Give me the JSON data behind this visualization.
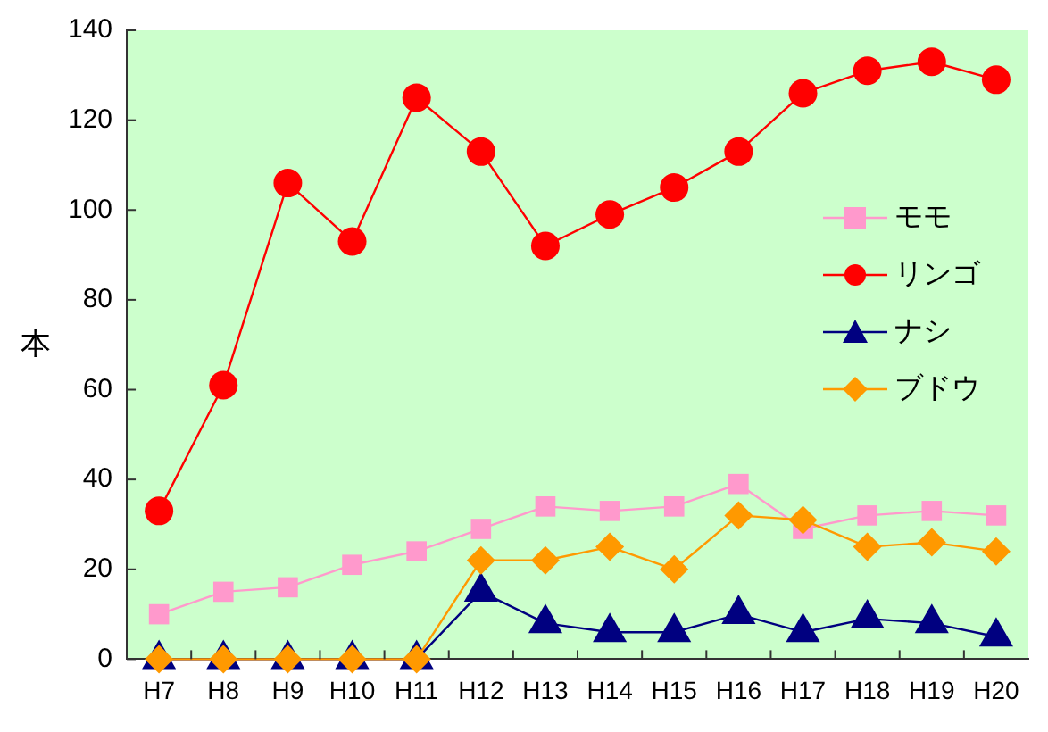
{
  "chart_data": {
    "type": "line",
    "ylabel": "本",
    "categories": [
      "H7",
      "H8",
      "H9",
      "H10",
      "H11",
      "H12",
      "H13",
      "H14",
      "H15",
      "H16",
      "H17",
      "H18",
      "H19",
      "H20"
    ],
    "series": [
      {
        "name": "モモ",
        "color": "#ff99cc",
        "marker": "square",
        "values": [
          10,
          15,
          16,
          21,
          24,
          29,
          34,
          33,
          34,
          39,
          29,
          32,
          33,
          32
        ]
      },
      {
        "name": "リンゴ",
        "color": "#ff0000",
        "marker": "circle",
        "values": [
          33,
          61,
          106,
          93,
          125,
          113,
          92,
          99,
          105,
          113,
          126,
          131,
          133,
          129
        ]
      },
      {
        "name": "ナシ",
        "color": "#000080",
        "marker": "triangle",
        "values": [
          0,
          0,
          0,
          0,
          0,
          15,
          8,
          6,
          6,
          10,
          6,
          9,
          8,
          5
        ]
      },
      {
        "name": "ブドウ",
        "color": "#ff9900",
        "marker": "diamond",
        "values": [
          0,
          0,
          0,
          0,
          0,
          22,
          22,
          25,
          20,
          32,
          31,
          25,
          26,
          24
        ]
      }
    ],
    "ylim": [
      0,
      140
    ],
    "yticks": [
      0,
      20,
      40,
      60,
      80,
      100,
      120,
      140
    ],
    "grid": false,
    "legend": "right"
  }
}
